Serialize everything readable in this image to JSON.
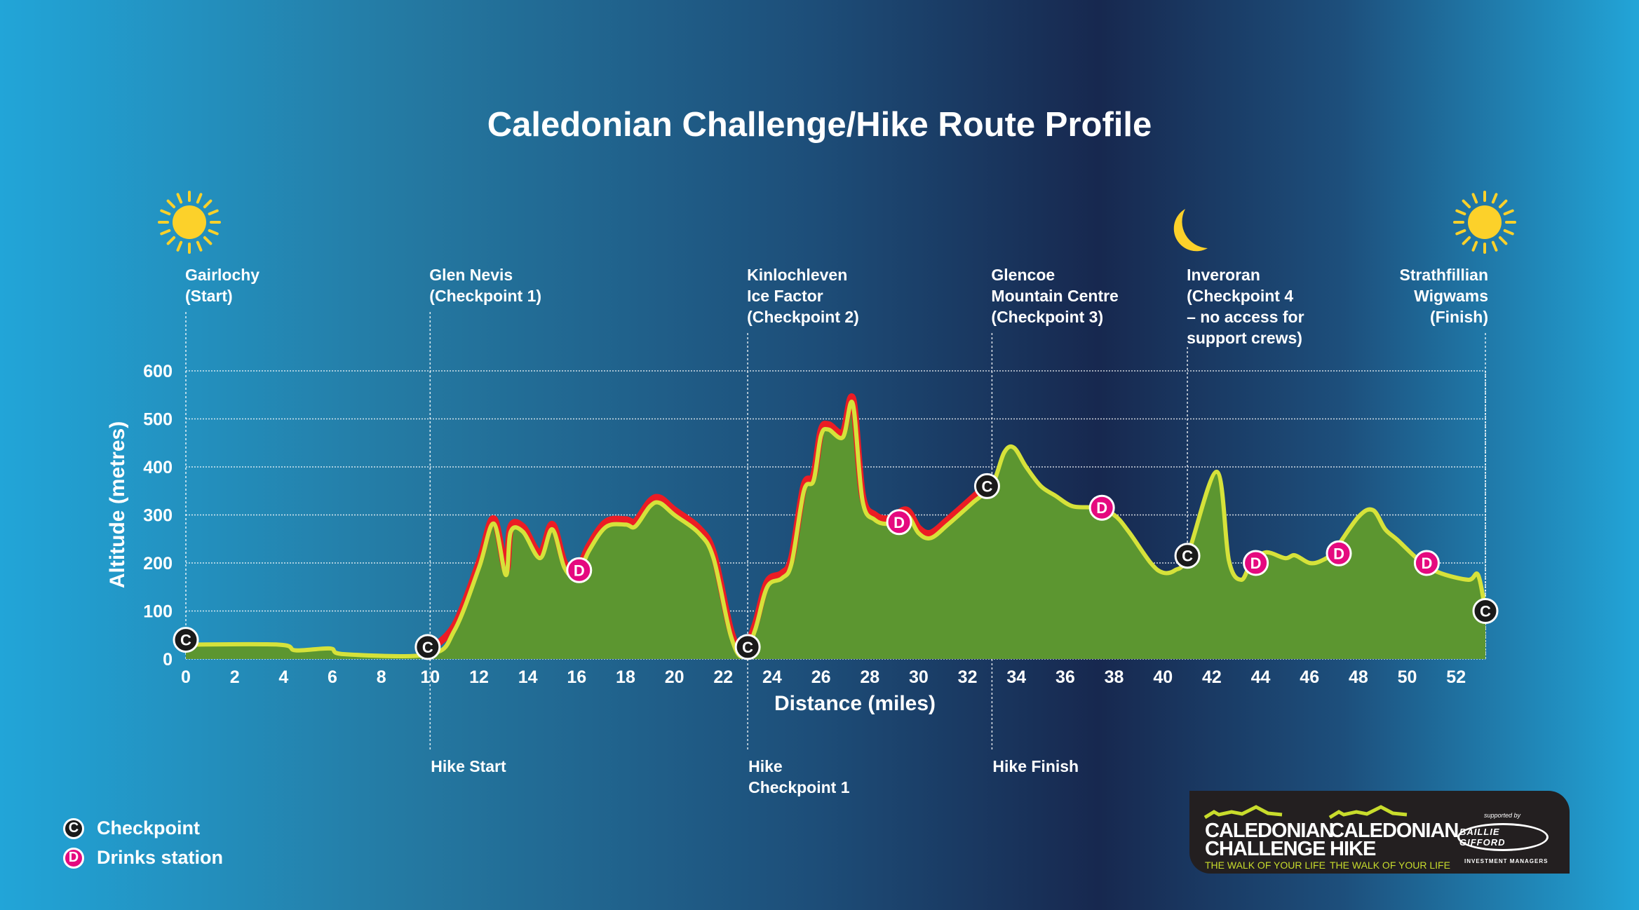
{
  "chart_data": {
    "type": "area",
    "title": "Caledonian Challenge/Hike Route Profile",
    "xlabel": "Distance (miles)",
    "ylabel": "Altitude (metres)",
    "xlim": [
      0,
      53.2
    ],
    "ylim": [
      0,
      600
    ],
    "xticks": [
      0,
      2,
      4,
      6,
      8,
      10,
      12,
      14,
      16,
      18,
      20,
      22,
      24,
      26,
      28,
      30,
      32,
      34,
      36,
      38,
      40,
      42,
      44,
      46,
      48,
      50,
      52
    ],
    "yticks": [
      0,
      100,
      200,
      300,
      400,
      500,
      600
    ],
    "grid": true,
    "profile": [
      [
        0,
        30
      ],
      [
        3.8,
        30
      ],
      [
        4.5,
        18
      ],
      [
        5.9,
        22
      ],
      [
        6.5,
        10
      ],
      [
        10,
        10
      ],
      [
        11,
        60
      ],
      [
        12,
        190
      ],
      [
        12.6,
        282
      ],
      [
        13.1,
        175
      ],
      [
        13.3,
        265
      ],
      [
        13.8,
        265
      ],
      [
        14.5,
        210
      ],
      [
        15,
        270
      ],
      [
        15.5,
        190
      ],
      [
        16,
        172
      ],
      [
        16.5,
        225
      ],
      [
        17.2,
        275
      ],
      [
        18,
        280
      ],
      [
        18.4,
        276
      ],
      [
        19,
        318
      ],
      [
        19.4,
        325
      ],
      [
        20,
        300
      ],
      [
        21,
        262
      ],
      [
        21.6,
        210
      ],
      [
        22.3,
        50
      ],
      [
        22.8,
        5
      ],
      [
        23.3,
        60
      ],
      [
        23.8,
        150
      ],
      [
        24.4,
        168
      ],
      [
        24.8,
        200
      ],
      [
        25.3,
        350
      ],
      [
        25.7,
        372
      ],
      [
        26,
        465
      ],
      [
        26.3,
        478
      ],
      [
        26.9,
        462
      ],
      [
        27.3,
        532
      ],
      [
        27.7,
        330
      ],
      [
        28.2,
        290
      ],
      [
        28.8,
        282
      ],
      [
        29.5,
        300
      ],
      [
        30,
        262
      ],
      [
        30.5,
        252
      ],
      [
        31.2,
        280
      ],
      [
        32.2,
        325
      ],
      [
        33,
        362
      ],
      [
        33.5,
        430
      ],
      [
        33.9,
        440
      ],
      [
        34.4,
        400
      ],
      [
        35,
        360
      ],
      [
        35.6,
        340
      ],
      [
        36.3,
        318
      ],
      [
        37.2,
        315
      ],
      [
        38,
        300
      ],
      [
        38.6,
        265
      ],
      [
        39.5,
        200
      ],
      [
        40,
        180
      ],
      [
        40.5,
        185
      ],
      [
        41,
        215
      ],
      [
        42.2,
        390
      ],
      [
        42.7,
        205
      ],
      [
        43.2,
        165
      ],
      [
        43.6,
        198
      ],
      [
        44.2,
        222
      ],
      [
        45,
        210
      ],
      [
        45.4,
        216
      ],
      [
        46,
        200
      ],
      [
        46.5,
        205
      ],
      [
        47,
        225
      ],
      [
        48,
        296
      ],
      [
        48.6,
        310
      ],
      [
        49.1,
        270
      ],
      [
        49.6,
        248
      ],
      [
        50.5,
        205
      ],
      [
        51.3,
        180
      ],
      [
        52.5,
        165
      ],
      [
        52.9,
        175
      ],
      [
        53.2,
        100
      ]
    ],
    "challenge_only_range": [
      10,
      33
    ],
    "series_colors": {
      "fill": "#5c9630",
      "line": "#d6e23a",
      "challenge_line": "#ec1c24"
    },
    "checkpoints": [
      [
        0,
        40
      ],
      [
        9.9,
        25
      ],
      [
        23,
        25
      ],
      [
        32.8,
        360
      ],
      [
        41,
        215
      ],
      [
        53.2,
        100
      ]
    ],
    "drinks_stations": [
      [
        16.1,
        185
      ],
      [
        29.2,
        285
      ],
      [
        37.5,
        315
      ],
      [
        43.8,
        200
      ],
      [
        47.2,
        220
      ],
      [
        50.8,
        200
      ]
    ],
    "checkpoint_glyph": "C",
    "drinks_glyph": "D",
    "locations_top": [
      {
        "mile": 0,
        "label": "Gairlochy\n(Start)",
        "align": "left"
      },
      {
        "mile": 10,
        "label": "Glen Nevis\n(Checkpoint 1)",
        "align": "left"
      },
      {
        "mile": 23,
        "label": "Kinlochleven\nIce Factor\n(Checkpoint 2)",
        "align": "left"
      },
      {
        "mile": 33,
        "label": "Glencoe\nMountain Centre\n(Checkpoint 3)",
        "align": "left"
      },
      {
        "mile": 41,
        "label": "Inveroran\n(Checkpoint 4\n– no access for\nsupport crews)",
        "align": "left"
      },
      {
        "mile": 53.2,
        "label": "Strathfillian\nWigwams\n(Finish)",
        "align": "right"
      }
    ],
    "locations_bottom": [
      {
        "mile": 10,
        "label": "Hike Start"
      },
      {
        "mile": 23,
        "label": "Hike\nCheckpoint 1"
      },
      {
        "mile": 33,
        "label": "Hike Finish"
      }
    ],
    "legend": {
      "checkpoint": "Checkpoint",
      "drinks": "Drinks station",
      "placement": "bottom-left"
    },
    "icons": [
      "sun-icon",
      "moon-icon",
      "sun-icon"
    ]
  },
  "logos": {
    "challenge": "CALEDONIAN\nCHALLENGE",
    "hike": "CALEDONIAN\nHIKE",
    "tagline": "THE WALK OF YOUR LIFE",
    "supported": "supported by",
    "sponsor": "BAILLIE GIFFORD",
    "sponsor_sub": "INVESTMENT MANAGERS"
  }
}
